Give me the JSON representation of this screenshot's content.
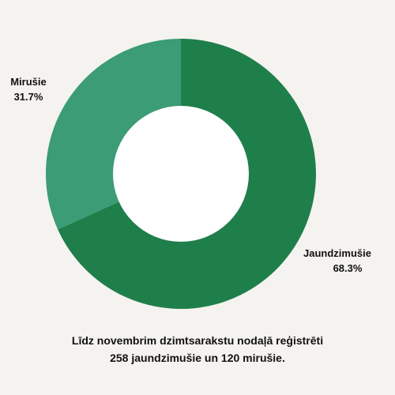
{
  "chart_data": {
    "type": "pie",
    "donut": true,
    "categories": [
      "Jaundzimušie",
      "Mirušie"
    ],
    "values": [
      258,
      120
    ],
    "percent_labels": [
      "68.3%",
      "31.7%"
    ],
    "colors": [
      "#1f7f4b",
      "#3b9c76"
    ],
    "legend": "none"
  },
  "caption": {
    "line1": "Līdz novembrim dzimtsarakstu nodaļā reģistrēti",
    "line2": "258 jaundzimušie un 120 mirušie."
  },
  "colors": {
    "background": "#f5f3ef",
    "hole": "#ffffff"
  }
}
